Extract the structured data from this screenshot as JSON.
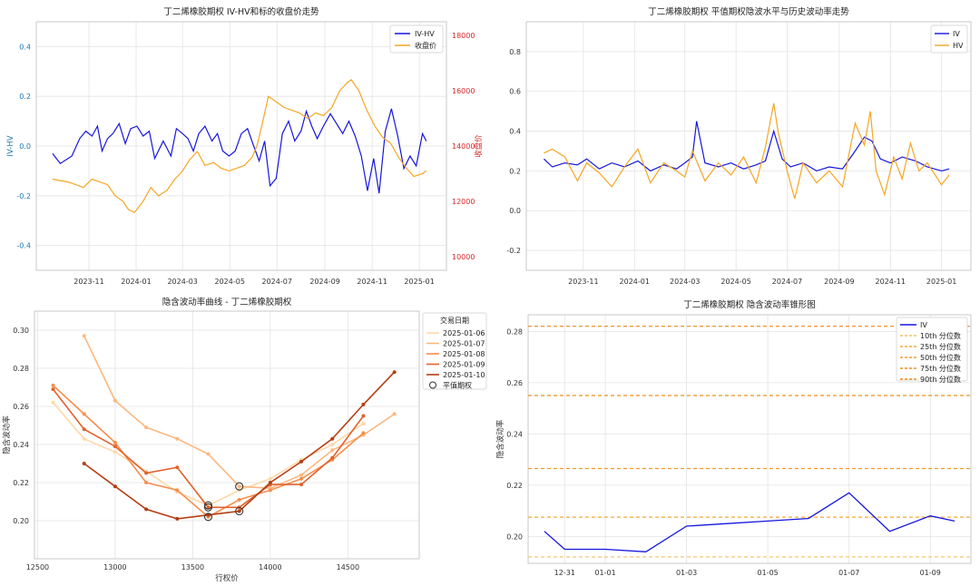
{
  "chart_data": [
    {
      "type": "line",
      "title": "丁二烯橡胶期权 IV-HV和标的收盘价走势",
      "ylabel": "IV-HV",
      "ylabel2": "收盘价",
      "ylim": [
        -0.5,
        0.5
      ],
      "y2lim": [
        9500,
        18500
      ],
      "yticks": [
        -0.4,
        -0.2,
        0.0,
        0.2,
        0.4
      ],
      "y2ticks": [
        10000,
        12000,
        14000,
        16000,
        18000
      ],
      "xticks": [
        "2023-11",
        "2024-01",
        "2024-03",
        "2024-05",
        "2024-07",
        "2024-09",
        "2024-11",
        "2025-01"
      ],
      "xtick_dates": [
        "2023-11-01",
        "2024-01-01",
        "2024-03-01",
        "2024-05-01",
        "2024-07-01",
        "2024-09-01",
        "2024-11-01",
        "2025-01-01"
      ],
      "x_range": [
        "2023-08-25",
        "2025-02-05"
      ],
      "grid": true,
      "legend_position": "top-right",
      "series": [
        {
          "name": "IV-HV",
          "color": "#1515e0",
          "x": [
            "2023-09-15",
            "2023-09-25",
            "2023-10-10",
            "2023-10-20",
            "2023-10-28",
            "2023-11-05",
            "2023-11-12",
            "2023-11-18",
            "2023-11-25",
            "2023-12-02",
            "2023-12-10",
            "2023-12-18",
            "2023-12-25",
            "2024-01-02",
            "2024-01-10",
            "2024-01-18",
            "2024-01-25",
            "2024-02-05",
            "2024-02-15",
            "2024-02-22",
            "2024-03-01",
            "2024-03-08",
            "2024-03-15",
            "2024-03-22",
            "2024-03-30",
            "2024-04-08",
            "2024-04-15",
            "2024-04-22",
            "2024-04-30",
            "2024-05-08",
            "2024-05-16",
            "2024-05-24",
            "2024-06-01",
            "2024-06-08",
            "2024-06-15",
            "2024-06-22",
            "2024-06-30",
            "2024-07-08",
            "2024-07-16",
            "2024-07-24",
            "2024-08-01",
            "2024-08-08",
            "2024-08-15",
            "2024-08-22",
            "2024-08-30",
            "2024-09-08",
            "2024-09-16",
            "2024-09-24",
            "2024-10-02",
            "2024-10-10",
            "2024-10-18",
            "2024-10-26",
            "2024-11-03",
            "2024-11-10",
            "2024-11-18",
            "2024-11-26",
            "2024-12-04",
            "2024-12-12",
            "2024-12-20",
            "2024-12-28",
            "2025-01-05",
            "2025-01-10"
          ],
          "y": [
            -0.03,
            -0.07,
            -0.04,
            0.03,
            0.06,
            0.04,
            0.08,
            -0.02,
            0.03,
            0.05,
            0.09,
            0.01,
            0.07,
            0.08,
            0.04,
            0.06,
            -0.05,
            0.02,
            -0.04,
            0.07,
            0.05,
            0.03,
            -0.02,
            0.05,
            0.08,
            0.02,
            0.05,
            -0.02,
            -0.04,
            -0.02,
            0.05,
            0.07,
            0.0,
            -0.06,
            0.02,
            -0.16,
            -0.13,
            0.05,
            0.1,
            0.02,
            0.06,
            0.14,
            0.08,
            0.03,
            0.08,
            0.13,
            0.09,
            0.05,
            0.1,
            0.04,
            -0.04,
            -0.18,
            -0.05,
            -0.19,
            0.06,
            0.15,
            0.04,
            -0.09,
            -0.04,
            -0.08,
            0.05,
            0.02
          ]
        },
        {
          "name": "收盘价",
          "color": "#f5a623",
          "axis": "right",
          "x": [
            "2023-09-15",
            "2023-09-25",
            "2023-10-05",
            "2023-10-15",
            "2023-10-25",
            "2023-11-05",
            "2023-11-15",
            "2023-11-25",
            "2023-12-05",
            "2023-12-15",
            "2023-12-22",
            "2023-12-30",
            "2024-01-10",
            "2024-01-20",
            "2024-01-30",
            "2024-02-10",
            "2024-02-20",
            "2024-03-01",
            "2024-03-10",
            "2024-03-20",
            "2024-03-30",
            "2024-04-10",
            "2024-04-20",
            "2024-04-30",
            "2024-05-10",
            "2024-05-20",
            "2024-05-30",
            "2024-06-05",
            "2024-06-12",
            "2024-06-20",
            "2024-06-30",
            "2024-07-10",
            "2024-07-20",
            "2024-07-30",
            "2024-08-10",
            "2024-08-20",
            "2024-08-30",
            "2024-09-10",
            "2024-09-20",
            "2024-09-30",
            "2024-10-05",
            "2024-10-15",
            "2024-10-25",
            "2024-11-05",
            "2024-11-15",
            "2024-11-25",
            "2024-12-05",
            "2024-12-15",
            "2024-12-25",
            "2025-01-05",
            "2025-01-10"
          ],
          "y": [
            12800,
            12750,
            12700,
            12600,
            12500,
            12800,
            12700,
            12600,
            12200,
            12000,
            11700,
            11600,
            12000,
            12500,
            12200,
            12400,
            12800,
            13100,
            13500,
            13800,
            13300,
            13400,
            13200,
            13100,
            13200,
            13300,
            13600,
            14000,
            14800,
            15800,
            15600,
            15400,
            15300,
            15200,
            15000,
            15200,
            15100,
            15400,
            16000,
            16300,
            16400,
            16000,
            15300,
            14700,
            14300,
            14100,
            13600,
            13200,
            12900,
            13000,
            13100
          ]
        }
      ]
    },
    {
      "type": "line",
      "title": "丁二烯橡胶期权 平值期权隐波水平与历史波动率走势",
      "ylim": [
        -0.3,
        0.95
      ],
      "yticks": [
        -0.2,
        0.0,
        0.2,
        0.4,
        0.6,
        0.8
      ],
      "xticks": [
        "2023-11",
        "2024-01",
        "2024-03",
        "2024-05",
        "2024-07",
        "2024-09",
        "2024-11",
        "2025-01"
      ],
      "xtick_dates": [
        "2023-11-01",
        "2024-01-01",
        "2024-03-01",
        "2024-05-01",
        "2024-07-01",
        "2024-09-01",
        "2024-11-01",
        "2025-01-01"
      ],
      "x_range": [
        "2023-08-25",
        "2025-02-05"
      ],
      "grid": true,
      "legend_position": "top-right",
      "series": [
        {
          "name": "IV",
          "color": "#1515e0",
          "x": [
            "2023-09-15",
            "2023-09-25",
            "2023-10-10",
            "2023-10-25",
            "2023-11-05",
            "2023-11-20",
            "2023-12-05",
            "2023-12-20",
            "2024-01-05",
            "2024-01-20",
            "2024-02-05",
            "2024-02-20",
            "2024-03-01",
            "2024-03-10",
            "2024-03-15",
            "2024-03-25",
            "2024-04-10",
            "2024-04-25",
            "2024-05-10",
            "2024-05-25",
            "2024-06-05",
            "2024-06-15",
            "2024-06-25",
            "2024-07-05",
            "2024-07-20",
            "2024-08-05",
            "2024-08-20",
            "2024-09-05",
            "2024-09-20",
            "2024-10-01",
            "2024-10-10",
            "2024-10-20",
            "2024-11-01",
            "2024-11-15",
            "2024-12-01",
            "2024-12-15",
            "2025-01-01",
            "2025-01-10"
          ],
          "y": [
            0.26,
            0.22,
            0.24,
            0.23,
            0.26,
            0.21,
            0.24,
            0.22,
            0.25,
            0.2,
            0.23,
            0.21,
            0.24,
            0.27,
            0.45,
            0.24,
            0.22,
            0.24,
            0.21,
            0.23,
            0.25,
            0.4,
            0.26,
            0.22,
            0.24,
            0.2,
            0.22,
            0.21,
            0.3,
            0.37,
            0.35,
            0.26,
            0.24,
            0.27,
            0.25,
            0.22,
            0.2,
            0.21
          ]
        },
        {
          "name": "HV",
          "color": "#f5a623",
          "x": [
            "2023-09-15",
            "2023-09-25",
            "2023-10-10",
            "2023-10-25",
            "2023-11-05",
            "2023-11-20",
            "2023-12-05",
            "2023-12-20",
            "2024-01-05",
            "2024-01-20",
            "2024-02-05",
            "2024-02-20",
            "2024-03-01",
            "2024-03-10",
            "2024-03-25",
            "2024-04-10",
            "2024-04-25",
            "2024-05-10",
            "2024-05-25",
            "2024-06-05",
            "2024-06-15",
            "2024-06-20",
            "2024-07-01",
            "2024-07-10",
            "2024-07-20",
            "2024-08-05",
            "2024-08-20",
            "2024-09-05",
            "2024-09-20",
            "2024-10-01",
            "2024-10-08",
            "2024-10-15",
            "2024-10-25",
            "2024-11-05",
            "2024-11-15",
            "2024-11-25",
            "2024-12-05",
            "2024-12-15",
            "2025-01-01",
            "2025-01-10"
          ],
          "y": [
            0.29,
            0.31,
            0.27,
            0.15,
            0.24,
            0.19,
            0.12,
            0.22,
            0.31,
            0.14,
            0.24,
            0.2,
            0.17,
            0.3,
            0.15,
            0.24,
            0.18,
            0.27,
            0.14,
            0.32,
            0.54,
            0.4,
            0.2,
            0.06,
            0.24,
            0.14,
            0.2,
            0.12,
            0.44,
            0.33,
            0.5,
            0.2,
            0.08,
            0.27,
            0.16,
            0.34,
            0.2,
            0.24,
            0.13,
            0.18
          ]
        }
      ]
    },
    {
      "type": "line",
      "title": "隐含波动率曲线 - 丁二烯橡胶期权",
      "xlabel": "行权价",
      "ylabel": "隐含波动率",
      "xlim": [
        12480,
        14960
      ],
      "ylim": [
        0.18,
        0.31
      ],
      "xticks": [
        12500,
        13000,
        13500,
        14000,
        14500
      ],
      "yticks": [
        0.2,
        0.22,
        0.24,
        0.26,
        0.28,
        0.3
      ],
      "grid": true,
      "legend_title": "交易日期",
      "legend_position": "top-right",
      "atm_label": "平值期权",
      "series": [
        {
          "name": "2025-01-06",
          "color": "#fdd9a8",
          "x": [
            12600,
            12800,
            13000,
            13200,
            13400,
            13600,
            13800,
            14000,
            14200,
            14400,
            14600
          ],
          "y": [
            0.262,
            0.243,
            0.236,
            0.226,
            0.215,
            0.208,
            0.216,
            0.222,
            0.232,
            0.24,
            0.251
          ],
          "atm": [
            13600,
            0.208
          ]
        },
        {
          "name": "2025-01-07",
          "color": "#fcb77d",
          "x": [
            12800,
            13000,
            13200,
            13400,
            13600,
            13800,
            14000,
            14200,
            14400,
            14600,
            14800
          ],
          "y": [
            0.297,
            0.263,
            0.249,
            0.243,
            0.235,
            0.218,
            0.217,
            0.224,
            0.237,
            0.245,
            0.256
          ],
          "atm": [
            13800,
            0.218
          ]
        },
        {
          "name": "2025-01-08",
          "color": "#f68e4e",
          "x": [
            12600,
            12800,
            13000,
            13200,
            13400,
            13600,
            13800,
            14000,
            14200,
            14400,
            14600
          ],
          "y": [
            0.271,
            0.256,
            0.241,
            0.22,
            0.216,
            0.202,
            0.211,
            0.216,
            0.222,
            0.232,
            0.246
          ],
          "atm": [
            13600,
            0.202
          ]
        },
        {
          "name": "2025-01-09",
          "color": "#e2612c",
          "x": [
            12600,
            12800,
            13000,
            13200,
            13400,
            13600,
            13800,
            14000,
            14200,
            14400,
            14600
          ],
          "y": [
            0.269,
            0.248,
            0.239,
            0.225,
            0.228,
            0.207,
            0.207,
            0.219,
            0.219,
            0.233,
            0.255
          ],
          "atm": [
            13600,
            0.207
          ]
        },
        {
          "name": "2025-01-10",
          "color": "#b43f15",
          "x": [
            12800,
            13000,
            13200,
            13400,
            13600,
            13800,
            14000,
            14200,
            14400,
            14600,
            14800
          ],
          "y": [
            0.23,
            0.218,
            0.206,
            0.201,
            0.203,
            0.205,
            0.22,
            0.231,
            0.243,
            0.261,
            0.278
          ],
          "atm": [
            13800,
            0.205
          ]
        }
      ]
    },
    {
      "type": "line",
      "title": "丁二烯橡胶期权 隐含波动率锥形图",
      "ylabel": "隐含波动率",
      "ylim": [
        0.1895,
        0.2865
      ],
      "yticks": [
        0.2,
        0.22,
        0.24,
        0.26,
        0.28
      ],
      "xticks": [
        "12-31",
        "01-01",
        "01-03",
        "01-05",
        "01-07",
        "01-09"
      ],
      "xtick_days": [
        0,
        1,
        3,
        5,
        7,
        9
      ],
      "xlim": [
        -0.9,
        10.0
      ],
      "grid": true,
      "legend_position": "top-right",
      "series": [
        {
          "name": "IV",
          "color": "#1515e0",
          "x": [
            -0.5,
            0,
            1,
            2,
            3,
            4,
            5,
            6,
            7,
            8,
            9,
            9.6
          ],
          "y": [
            0.202,
            0.195,
            0.195,
            0.194,
            0.204,
            0.205,
            0.206,
            0.207,
            0.217,
            0.202,
            0.208,
            0.206
          ]
        }
      ],
      "percentiles": [
        {
          "name": "10th 分位数",
          "value": 0.192,
          "color": "#f5c060"
        },
        {
          "name": "25th 分位数",
          "value": 0.2075,
          "color": "#f4a93a"
        },
        {
          "name": "50th 分位数",
          "value": 0.2265,
          "color": "#f29a2a"
        },
        {
          "name": "75th 分位数",
          "value": 0.255,
          "color": "#ef8f1f"
        },
        {
          "name": "90th 分位数",
          "value": 0.282,
          "color": "#ec8814"
        }
      ]
    }
  ]
}
